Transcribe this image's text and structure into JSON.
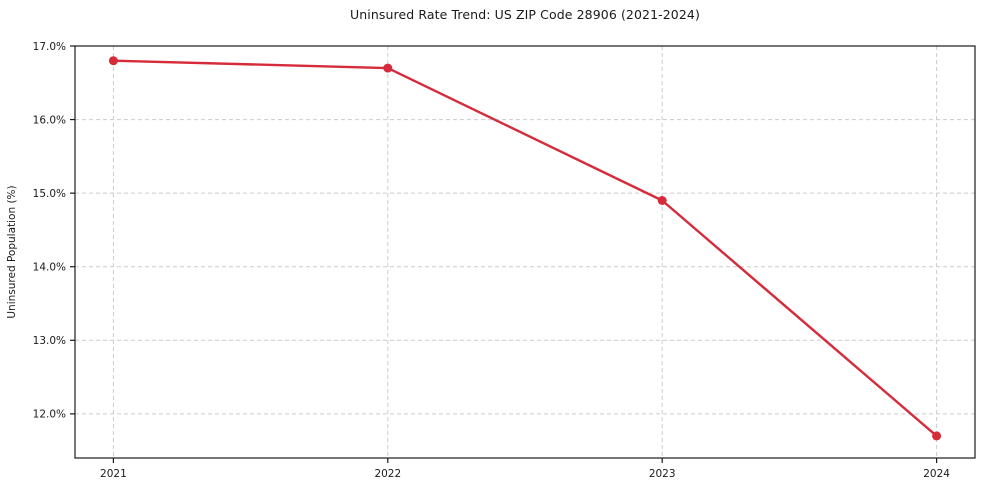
{
  "chart_data": {
    "type": "line",
    "title": "Uninsured Rate Trend: US ZIP Code 28906 (2021-2024)",
    "xlabel": "",
    "ylabel": "Uninsured Population (%)",
    "x": [
      2021,
      2022,
      2023,
      2024
    ],
    "values": [
      16.8,
      16.7,
      14.9,
      11.7
    ],
    "xticks": {
      "values": [
        2021,
        2022,
        2023,
        2024
      ],
      "labels": [
        "2021",
        "2022",
        "2023",
        "2024"
      ]
    },
    "yticks": {
      "values": [
        12,
        13,
        14,
        15,
        16,
        17
      ],
      "labels": [
        "12.0%",
        "13.0%",
        "14.0%",
        "15.0%",
        "16.0%",
        "17.0%"
      ]
    },
    "xlim": [
      2020.86,
      2024.14
    ],
    "ylim": [
      11.4,
      17.0
    ],
    "grid": true,
    "grid_style": "dashed",
    "legend": false,
    "styles": {
      "line_color": "#d62b3a",
      "marker": "circle",
      "grid_color": "#cccccc",
      "spine_color": "#1a1a1a",
      "text_color": "#1a1a1a",
      "background": "#ffffff"
    }
  }
}
